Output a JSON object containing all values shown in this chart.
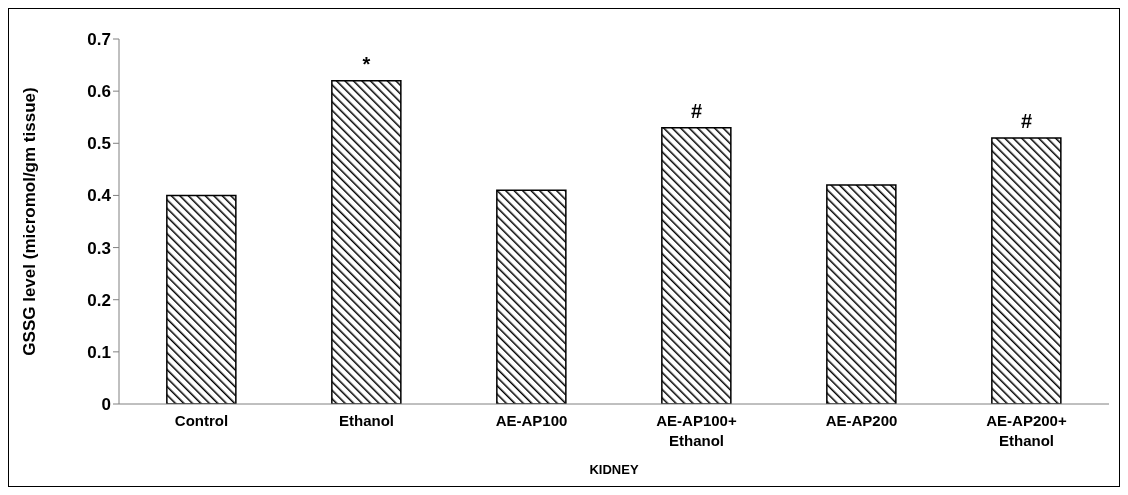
{
  "chart_data": {
    "type": "bar",
    "xlabel": "KIDNEY",
    "ylabel": "GSSG level (micromol/gm tissue)",
    "categories": [
      "Control",
      "Ethanol",
      "AE-AP100",
      "AE-AP100+ Ethanol",
      "AE-AP200",
      "AE-AP200+ Ethanol"
    ],
    "values": [
      0.4,
      0.62,
      0.41,
      0.53,
      0.42,
      0.51
    ],
    "color": "#000000",
    "ylim": [
      0,
      0.7
    ],
    "yticks": [
      0,
      0.1,
      0.2,
      0.3,
      0.4,
      0.5,
      0.6,
      0.7
    ],
    "grid": false,
    "annotations": [
      {
        "text": "*",
        "x": "Ethanol",
        "y": 0.62
      },
      {
        "text": "#",
        "x": "AE-AP100+ Ethanol",
        "y": 0.53
      },
      {
        "text": "#",
        "x": "AE-AP200+ Ethanol",
        "y": 0.51
      }
    ]
  }
}
